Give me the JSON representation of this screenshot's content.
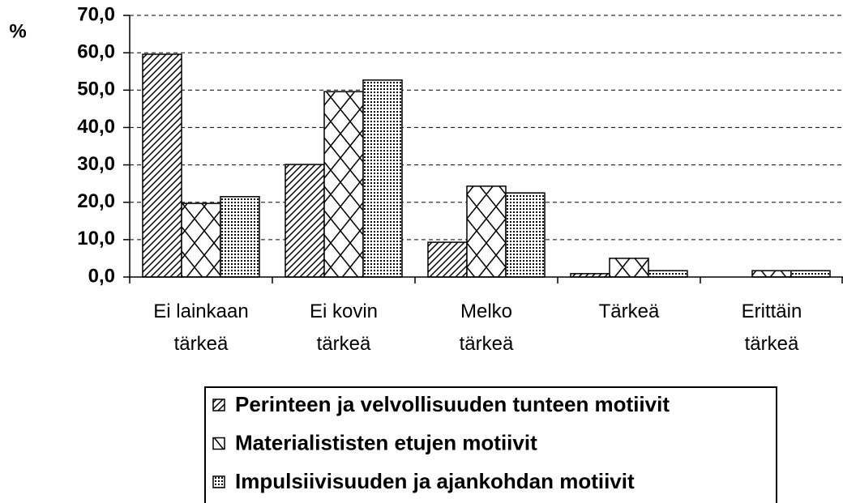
{
  "chart_data": {
    "type": "bar",
    "y_label": "%",
    "categories": [
      "Ei lainkaan\ntärkeä",
      "Ei kovin\ntärkeä",
      "Melko\ntärkeä",
      "Tärkeä",
      "Erittäin\ntärkeä"
    ],
    "series": [
      {
        "name": "Perinteen ja velvollisuuden tunteen motiivit",
        "color": "#000000",
        "pattern": "diagonal",
        "values": [
          59.6,
          30.1,
          9.3,
          0.9,
          0
        ]
      },
      {
        "name": "Materialististen etujen motiivit",
        "color": "#000000",
        "pattern": "lattice",
        "values": [
          19.7,
          49.6,
          24.3,
          5.0,
          1.7
        ]
      },
      {
        "name": "Impulsiivisuuden ja ajankohdan motiivit",
        "color": "#000000",
        "pattern": "dots",
        "values": [
          21.5,
          52.7,
          22.5,
          1.7,
          1.7
        ]
      }
    ],
    "ylim": [
      0,
      70
    ],
    "yticks": [
      {
        "value": 0,
        "label": "0,0"
      },
      {
        "value": 10,
        "label": "10,0"
      },
      {
        "value": 20,
        "label": "20,0"
      },
      {
        "value": 30,
        "label": "30,0"
      },
      {
        "value": 40,
        "label": "40,0"
      },
      {
        "value": 50,
        "label": "50,0"
      },
      {
        "value": 60,
        "label": "60,0"
      },
      {
        "value": 70,
        "label": "70,0"
      }
    ],
    "grid": true,
    "legend": "bottom"
  }
}
